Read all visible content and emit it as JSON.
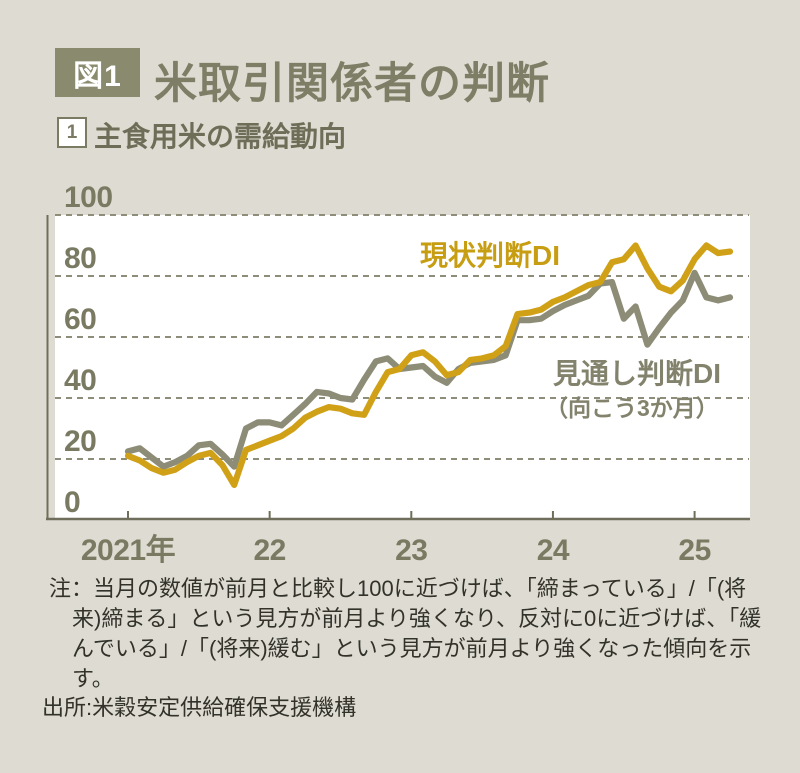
{
  "header": {
    "fig_label": "図1",
    "title": "米取引関係者の判断"
  },
  "subtitle": {
    "num": "1",
    "text": "主食用米の需給動向"
  },
  "labels": {
    "series1": "現状判断DI",
    "series2_line1": "見通し判断DI",
    "series2_line2": "（向こう3か月）"
  },
  "note": {
    "lines": [
      "注：当月の数値が前月と比較し100に近づけば、「締まっている」/「(将",
      "来)締まる」という見方が前月より強くなり、反対に0に近づけば、「緩",
      "んでいる」/「(将来)緩む」という見方が前月より強くなった傾向を示",
      "す。"
    ]
  },
  "source": {
    "text": "出所:米穀安定供給確保支援機構"
  },
  "colors": {
    "page_bg": "#dedcd2",
    "panel": "#ffffff",
    "accent_yellow": "#d0a117",
    "line_gray": "#8c8c77",
    "olive_text": "#7a7a63",
    "fig_box_bg": "#8a8a6e",
    "grid": "#8d8d79",
    "axis": "#6e6e5a",
    "note_text": "#32322b"
  },
  "chart_data": {
    "type": "line",
    "title": "主食用米の需給動向",
    "xlabel": "年",
    "ylabel": "DI",
    "ylim": [
      0,
      100
    ],
    "grid": "dashed-horizontal",
    "x_start": "2021-01",
    "x_end": "2025-04",
    "x_ticks": [
      "2021年",
      "22",
      "23",
      "24",
      "25"
    ],
    "x_tick_month_index": [
      0,
      12,
      24,
      36,
      48
    ],
    "y_ticks": [
      100,
      80,
      60,
      40,
      20,
      0
    ],
    "legend_position": "inline-annotations",
    "series": [
      {
        "name": "現状判断DI",
        "color": "#d0a117",
        "values": [
          21,
          19.5,
          17,
          15.5,
          16.5,
          19,
          21,
          22,
          18,
          11.5,
          23,
          24.5,
          26,
          27.5,
          30,
          33.5,
          35.5,
          37,
          36.5,
          35,
          34.5,
          42,
          48.5,
          49.5,
          54,
          55,
          52,
          47.5,
          48.5,
          52.5,
          53,
          54,
          57,
          67.5,
          68,
          69,
          71.5,
          73,
          75,
          77,
          78,
          84.5,
          85.5,
          90,
          82.5,
          76.5,
          75,
          78.5,
          85.5,
          90,
          87.5,
          88
        ]
      },
      {
        "name": "見通し判断DI（向こう3か月）",
        "color": "#8c8c77",
        "values": [
          22.5,
          23.5,
          20.5,
          17.5,
          19,
          21,
          24.5,
          25,
          21.5,
          17.5,
          30,
          32,
          32,
          31,
          34.5,
          38,
          42,
          41.5,
          40,
          39.5,
          46,
          52,
          53,
          49.5,
          50,
          50.5,
          47,
          45,
          49.5,
          51.5,
          52,
          52.5,
          54,
          65.5,
          65.5,
          66,
          68.5,
          70.5,
          72,
          73.5,
          77.5,
          78,
          66,
          70,
          57.5,
          63,
          68,
          72,
          81,
          73,
          72,
          73
        ]
      }
    ]
  }
}
